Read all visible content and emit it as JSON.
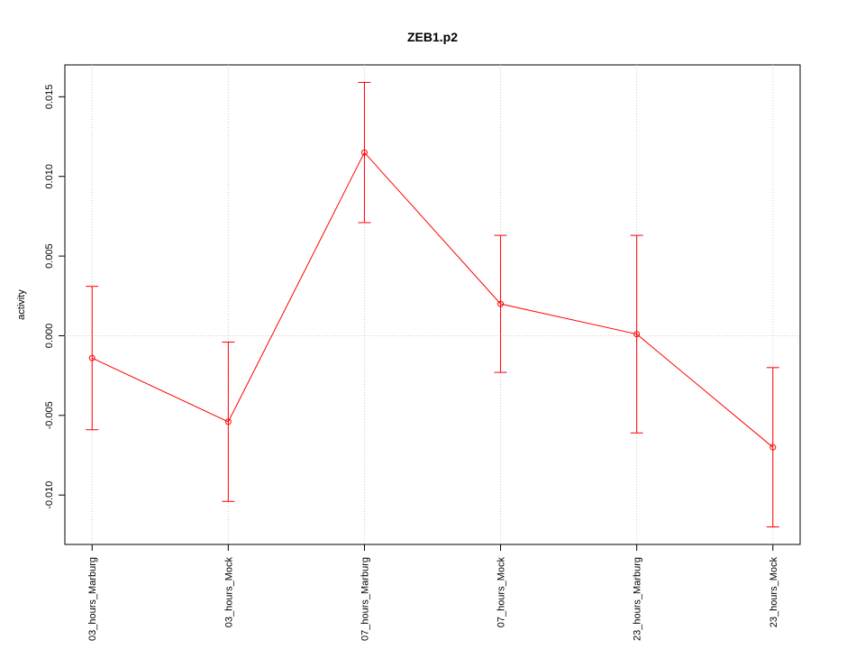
{
  "chart_data": {
    "type": "line",
    "title": "ZEB1.p2",
    "y_label": "activity",
    "categories": [
      "03_hours_Marburg",
      "03_hours_Mock",
      "07_hours_Marburg",
      "07_hours_Mock",
      "23_hours_Marburg",
      "23_hours_Mock"
    ],
    "series": [
      {
        "color": "#ff0000",
        "values": [
          -0.0014,
          -0.0054,
          0.0115,
          0.002,
          0.0001,
          -0.007
        ],
        "errors": [
          0.0045,
          0.005,
          0.0044,
          0.0043,
          0.0062,
          0.005
        ]
      }
    ],
    "ylim": [
      -0.0131,
      0.017
    ],
    "yticks": [
      {
        "value": -0.01,
        "label": "-0.010"
      },
      -0.005,
      {
        "value": 0,
        "label": "0.000"
      },
      0.005,
      {
        "value": 0.01,
        "label": "0.010"
      },
      0.015
    ],
    "grid": true,
    "reference_line": 0
  }
}
